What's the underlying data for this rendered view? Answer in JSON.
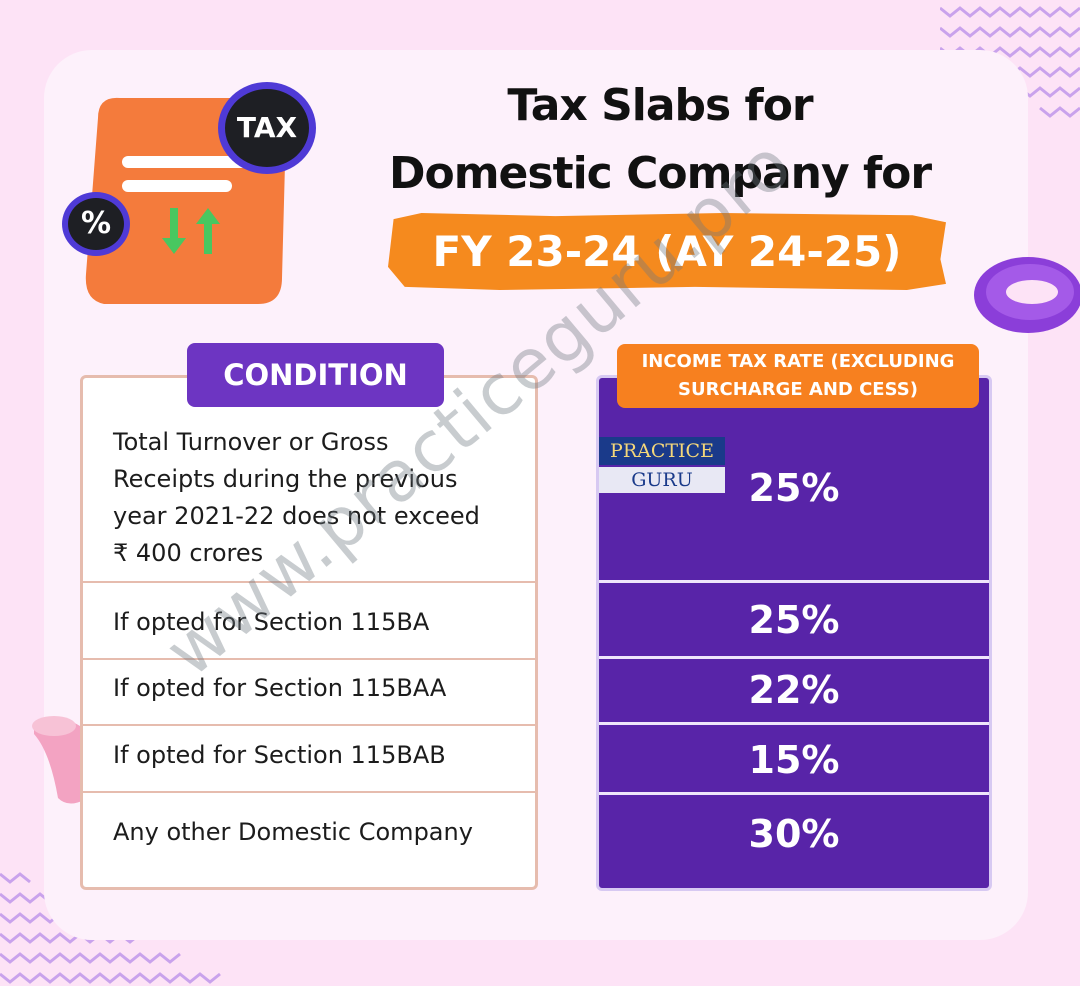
{
  "title": {
    "line1": "Tax Slabs for",
    "line2": "Domestic Company for",
    "fy": "FY 23-24 (AY 24-25)"
  },
  "illustration": {
    "tax_badge": "TAX",
    "percent_badge": "%"
  },
  "table": {
    "condition_header": "CONDITION",
    "rate_header_line1": "INCOME TAX RATE (EXCLUDING",
    "rate_header_line2": "SURCHARGE AND CESS)",
    "rows": [
      {
        "condition_lines": [
          "Total Turnover or Gross",
          "Receipts during the previous",
          "year 2021-22 does not exceed",
          "₹ 400 crores"
        ],
        "rate": "25%"
      },
      {
        "condition_lines": [
          "If opted for Section 115BA"
        ],
        "rate": "25%"
      },
      {
        "condition_lines": [
          "If opted for Section 115BAA"
        ],
        "rate": "22%"
      },
      {
        "condition_lines": [
          "If opted for Section 115BAB"
        ],
        "rate": "15%"
      },
      {
        "condition_lines": [
          "Any other Domestic Company"
        ],
        "rate": "30%"
      }
    ]
  },
  "logo": {
    "top": "PRACTICE",
    "bottom": "GURU"
  },
  "watermark": "www.practiceguru.pro",
  "colors": {
    "background": "#fde3f6",
    "card": "#fdf1fb",
    "purple": "#5824a8",
    "orange": "#f58a1e",
    "table_border": "#e6bcae"
  }
}
